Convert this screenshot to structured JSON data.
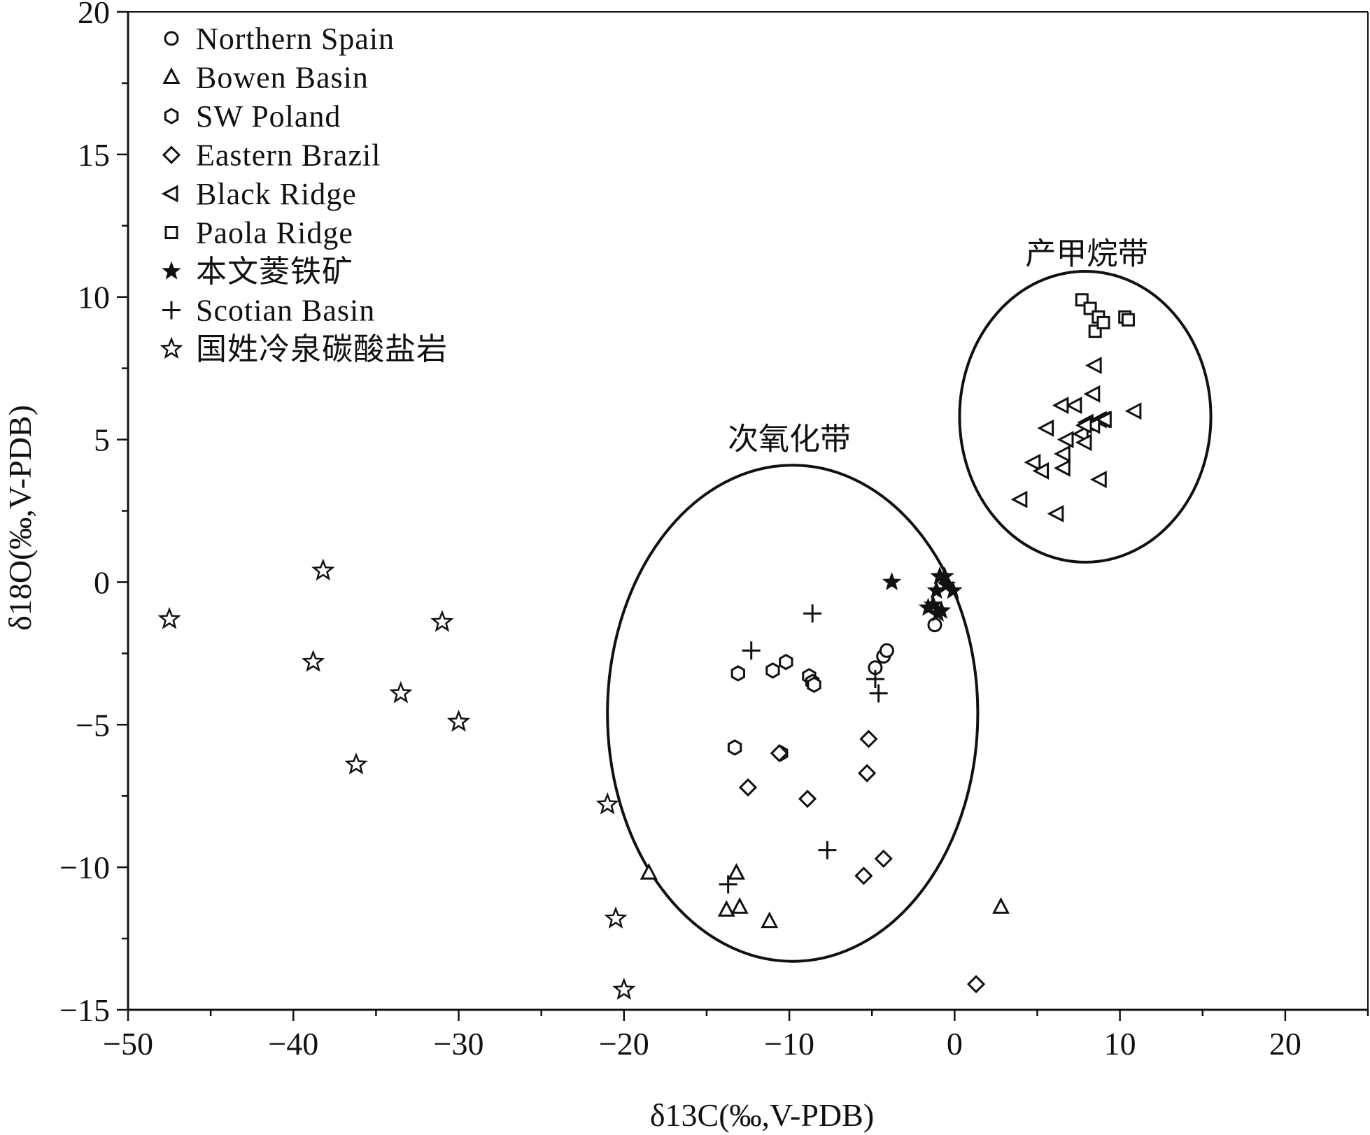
{
  "chart_data": {
    "type": "scatter",
    "xlabel": "δ13C(‰,V-PDB)",
    "ylabel": "δ18O(‰,V-PDB)",
    "xlim": [
      -50,
      25
    ],
    "ylim": [
      -15,
      20
    ],
    "xticks": [
      -50,
      -40,
      -30,
      -20,
      -10,
      0,
      10,
      20
    ],
    "yticks": [
      -15,
      -10,
      -5,
      0,
      5,
      10,
      15,
      20
    ],
    "xtick_labels": [
      "−50",
      "−40",
      "−30",
      "−20",
      "−10",
      "0",
      "10",
      "20"
    ],
    "ytick_labels": [
      "−15",
      "−10",
      "−5",
      "0",
      "5",
      "10",
      "15",
      "20"
    ],
    "grid": false,
    "legend_position": "top-left",
    "series": [
      {
        "name": "Northern Spain",
        "marker": "circle",
        "x": [
          -4.8,
          -4.3,
          -4.1,
          -1.2
        ],
        "y": [
          -3.0,
          -2.6,
          -2.4,
          -1.5
        ]
      },
      {
        "name": "Bowen Basin",
        "marker": "triangle-up",
        "x": [
          -18.5,
          -13.8,
          -13.2,
          -13.0,
          -11.2,
          2.8
        ],
        "y": [
          -10.2,
          -11.5,
          -10.2,
          -11.4,
          -11.9,
          -11.4
        ]
      },
      {
        "name": "SW Poland",
        "marker": "hexagon",
        "x": [
          -13.3,
          -13.1,
          -11.0,
          -10.2,
          -8.8,
          -8.6,
          -8.5,
          -10.5
        ],
        "y": [
          -5.8,
          -3.2,
          -3.1,
          -2.8,
          -3.3,
          -3.5,
          -3.6,
          -6.0
        ]
      },
      {
        "name": "Eastern Brazil",
        "marker": "diamond",
        "x": [
          -12.5,
          -10.6,
          -8.9,
          -5.5,
          -5.2,
          -5.3,
          -4.3,
          1.3
        ],
        "y": [
          -7.2,
          -6.0,
          -7.6,
          -10.3,
          -5.5,
          -6.7,
          -9.7,
          -14.1
        ]
      },
      {
        "name": "Black Ridge",
        "marker": "triangle-left",
        "x": [
          4.0,
          4.8,
          5.3,
          5.6,
          6.2,
          6.6,
          6.6,
          6.8,
          7.3,
          7.7,
          7.9,
          8.0,
          8.4,
          8.8,
          9.0,
          8.8,
          8.5,
          8.4,
          10.9,
          9.1,
          6.5,
          7.9
        ],
        "y": [
          2.9,
          4.2,
          3.9,
          5.4,
          2.4,
          4.0,
          4.5,
          5.0,
          6.2,
          5.2,
          4.9,
          5.6,
          6.6,
          5.7,
          5.7,
          3.6,
          7.6,
          5.5,
          6.0,
          5.7,
          6.2,
          5.5
        ]
      },
      {
        "name": "Paola Ridge",
        "marker": "square",
        "x": [
          7.7,
          8.2,
          8.7,
          8.5,
          9.0,
          10.3,
          10.5
        ],
        "y": [
          9.9,
          9.6,
          9.3,
          8.8,
          9.1,
          9.3,
          9.2
        ]
      },
      {
        "name": "本文菱铁矿",
        "marker": "star-filled",
        "x": [
          -3.8,
          -1.6,
          -1.3,
          -1.1,
          -0.9,
          -0.8,
          -0.6,
          -0.5,
          -0.1,
          -1.0
        ],
        "y": [
          0.0,
          -0.9,
          -0.8,
          -0.3,
          0.2,
          -1.0,
          0.2,
          -0.1,
          -0.3,
          -1.1
        ]
      },
      {
        "name": "Scotian Basin",
        "marker": "plus",
        "x": [
          -12.3,
          -8.6,
          -4.8,
          -4.6,
          -7.7,
          -13.7
        ],
        "y": [
          -2.4,
          -1.1,
          -3.4,
          -3.9,
          -9.4,
          -10.6
        ]
      },
      {
        "name": "国姓冷泉碳酸盐岩",
        "marker": "star-open",
        "x": [
          -47.5,
          -38.2,
          -38.8,
          -33.5,
          -31.0,
          -30.0,
          -36.2,
          -21.0,
          -20.5,
          -20.0
        ],
        "y": [
          -1.3,
          0.4,
          -2.8,
          -3.9,
          -1.4,
          -4.9,
          -6.4,
          -7.8,
          -11.8,
          -14.3
        ]
      }
    ],
    "annotations": [
      {
        "text": "次氧化带",
        "x": -10.0,
        "y": 5.0
      },
      {
        "text": "产甲烷带",
        "x": 8.0,
        "y": 11.5
      }
    ],
    "ellipses": [
      {
        "cx": -9.8,
        "cy": -4.6,
        "rx": 11.2,
        "ry": 8.7
      },
      {
        "cx": 7.9,
        "cy": 5.8,
        "rx": 7.6,
        "ry": 5.1
      }
    ]
  }
}
